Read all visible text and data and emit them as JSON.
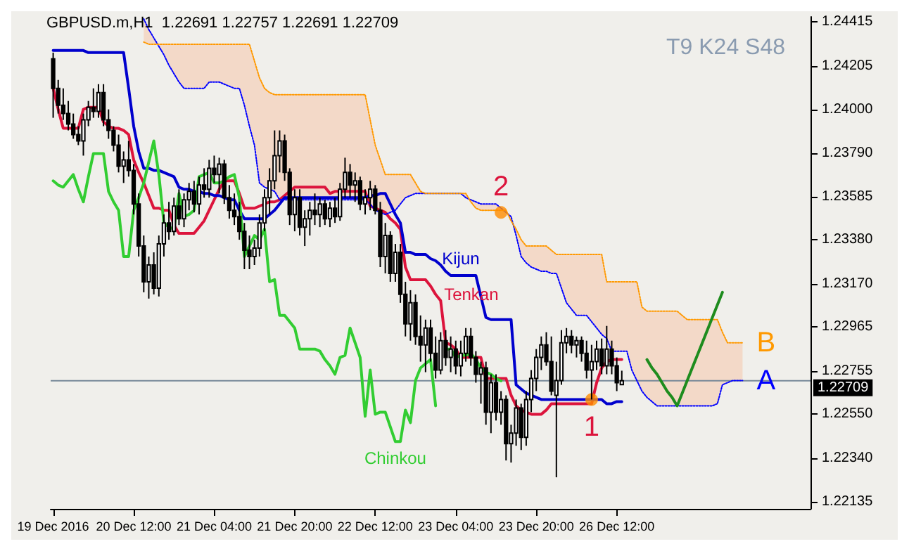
{
  "chart_data": {
    "type": "candlestick",
    "title": "GBPUSD.m,H1  1.22691 1.22757 1.22691 1.22709",
    "annotations": [
      "T9 K24 S48",
      {
        "text": "2",
        "y": 1.2351
      },
      {
        "text": "1",
        "y": 1.2262
      }
    ],
    "categories": [
      "19 Dec 2016",
      null,
      null,
      null,
      null,
      null,
      null,
      null,
      null,
      null,
      null,
      null,
      null,
      null,
      null,
      null,
      "20 Dec 12:00",
      null,
      null,
      null,
      null,
      null,
      null,
      null,
      null,
      null,
      null,
      null,
      null,
      null,
      null,
      null,
      "21 Dec 04:00",
      null,
      null,
      null,
      null,
      null,
      null,
      null,
      null,
      null,
      null,
      null,
      null,
      null,
      null,
      null,
      "21 Dec 20:00",
      null,
      null,
      null,
      null,
      null,
      null,
      null,
      null,
      null,
      null,
      null,
      null,
      null,
      null,
      null,
      "22 Dec 12:00",
      null,
      null,
      null,
      null,
      null,
      null,
      null,
      null,
      null,
      null,
      null,
      null,
      null,
      null,
      null,
      "23 Dec 04:00",
      null,
      null,
      null,
      null,
      null,
      null,
      null,
      null,
      null,
      null,
      null,
      null,
      null,
      null,
      null,
      "23 Dec 20:00",
      null,
      null,
      null,
      null,
      null,
      null,
      null,
      null,
      null,
      null,
      null,
      null,
      null,
      null,
      null,
      "26 Dec 12:00",
      null,
      null,
      null,
      null,
      null,
      null,
      null,
      null,
      null,
      null,
      null,
      null,
      null,
      null,
      null,
      null,
      null,
      null,
      null,
      null,
      null,
      null,
      null,
      null,
      null,
      null,
      null,
      null,
      null,
      null,
      null,
      null,
      null,
      null,
      null,
      null,
      null,
      null
    ],
    "ohlc": [
      [
        1.2424,
        1.2427,
        1.2396,
        1.241
      ],
      [
        1.241,
        1.2414,
        1.2398,
        1.2402
      ],
      [
        1.2402,
        1.241,
        1.2395,
        1.2398
      ],
      [
        1.2398,
        1.2404,
        1.239,
        1.2393
      ],
      [
        1.2393,
        1.2398,
        1.2386,
        1.2388
      ],
      [
        1.2388,
        1.2392,
        1.2383,
        1.2385
      ],
      [
        1.2385,
        1.2398,
        1.2378,
        1.2395
      ],
      [
        1.2395,
        1.2404,
        1.2392,
        1.2401
      ],
      [
        1.2401,
        1.241,
        1.2396,
        1.2399
      ],
      [
        1.2399,
        1.2412,
        1.2396,
        1.2408
      ],
      [
        1.2408,
        1.2412,
        1.2392,
        1.2395
      ],
      [
        1.2395,
        1.24,
        1.2386,
        1.239
      ],
      [
        1.239,
        1.2392,
        1.238,
        1.2383
      ],
      [
        1.2383,
        1.2388,
        1.237,
        1.2373
      ],
      [
        1.2373,
        1.238,
        1.2365,
        1.2376
      ],
      [
        1.2376,
        1.2385,
        1.2368,
        1.2371
      ],
      [
        1.2371,
        1.2374,
        1.235,
        1.2355
      ],
      [
        1.2355,
        1.236,
        1.233,
        1.2335
      ],
      [
        1.2335,
        1.234,
        1.2313,
        1.2318
      ],
      [
        1.2318,
        1.233,
        1.231,
        1.2326
      ],
      [
        1.2326,
        1.2332,
        1.2312,
        1.2315
      ],
      [
        1.2315,
        1.234,
        1.2311,
        1.2336
      ],
      [
        1.2336,
        1.235,
        1.233,
        1.2346
      ],
      [
        1.2346,
        1.2356,
        1.2338,
        1.2342
      ],
      [
        1.2342,
        1.2358,
        1.234,
        1.2354
      ],
      [
        1.2354,
        1.2362,
        1.2345,
        1.2348
      ],
      [
        1.2348,
        1.236,
        1.2344,
        1.2357
      ],
      [
        1.2357,
        1.2365,
        1.2352,
        1.2361
      ],
      [
        1.2361,
        1.2366,
        1.2351,
        1.2355
      ],
      [
        1.2355,
        1.2368,
        1.235,
        1.2364
      ],
      [
        1.2364,
        1.2372,
        1.2358,
        1.2362
      ],
      [
        1.2362,
        1.2376,
        1.2358,
        1.2372
      ],
      [
        1.2372,
        1.2378,
        1.2365,
        1.2369
      ],
      [
        1.2369,
        1.2377,
        1.236,
        1.2374
      ],
      [
        1.2374,
        1.2376,
        1.2355,
        1.2358
      ],
      [
        1.2358,
        1.2364,
        1.2348,
        1.2352
      ],
      [
        1.2352,
        1.236,
        1.2345,
        1.2349
      ],
      [
        1.2349,
        1.2356,
        1.2338,
        1.2342
      ],
      [
        1.2342,
        1.2346,
        1.2324,
        1.2333
      ],
      [
        1.2333,
        1.234,
        1.2324,
        1.233
      ],
      [
        1.233,
        1.2338,
        1.2326,
        1.2334
      ],
      [
        1.2334,
        1.235,
        1.233,
        1.2346
      ],
      [
        1.2346,
        1.2362,
        1.2342,
        1.2358
      ],
      [
        1.2358,
        1.2372,
        1.235,
        1.2366
      ],
      [
        1.2366,
        1.239,
        1.2362,
        1.2378
      ],
      [
        1.2378,
        1.239,
        1.237,
        1.2385
      ],
      [
        1.2385,
        1.2388,
        1.2366,
        1.237
      ],
      [
        1.237,
        1.2372,
        1.2345,
        1.235
      ],
      [
        1.235,
        1.2362,
        1.2342,
        1.2358
      ],
      [
        1.2358,
        1.2362,
        1.234,
        1.2344
      ],
      [
        1.2344,
        1.2352,
        1.2335,
        1.2348
      ],
      [
        1.2348,
        1.2356,
        1.234,
        1.2352
      ],
      [
        1.2352,
        1.236,
        1.2345,
        1.235
      ],
      [
        1.235,
        1.2358,
        1.2344,
        1.2355
      ],
      [
        1.2355,
        1.2357,
        1.2345,
        1.2348
      ],
      [
        1.2348,
        1.2356,
        1.2344,
        1.2353
      ],
      [
        1.2353,
        1.2358,
        1.2346,
        1.2349
      ],
      [
        1.2349,
        1.2365,
        1.2347,
        1.2362
      ],
      [
        1.2362,
        1.2377,
        1.2358,
        1.237
      ],
      [
        1.237,
        1.2374,
        1.2358,
        1.2364
      ],
      [
        1.2364,
        1.237,
        1.2356,
        1.2366
      ],
      [
        1.2366,
        1.2368,
        1.2352,
        1.2355
      ],
      [
        1.2355,
        1.2362,
        1.235,
        1.2358
      ],
      [
        1.2358,
        1.2366,
        1.2352,
        1.2362
      ],
      [
        1.2362,
        1.2364,
        1.235,
        1.2352
      ],
      [
        1.2352,
        1.2356,
        1.2325,
        1.233
      ],
      [
        1.233,
        1.2346,
        1.2322,
        1.234
      ],
      [
        1.234,
        1.2342,
        1.2318,
        1.2322
      ],
      [
        1.2322,
        1.2336,
        1.2318,
        1.2332
      ],
      [
        1.2332,
        1.2336,
        1.2308,
        1.2312
      ],
      [
        1.2312,
        1.2318,
        1.2292,
        1.2298
      ],
      [
        1.2298,
        1.2314,
        1.229,
        1.2308
      ],
      [
        1.2308,
        1.2312,
        1.2288,
        1.2292
      ],
      [
        1.2292,
        1.2302,
        1.228,
        1.2288
      ],
      [
        1.2288,
        1.23,
        1.2275,
        1.2296
      ],
      [
        1.2296,
        1.23,
        1.228,
        1.2284
      ],
      [
        1.2284,
        1.2292,
        1.2272,
        1.2276
      ],
      [
        1.2276,
        1.2294,
        1.2274,
        1.229
      ],
      [
        1.229,
        1.2295,
        1.2278,
        1.2282
      ],
      [
        1.2282,
        1.2292,
        1.2275,
        1.2286
      ],
      [
        1.2286,
        1.229,
        1.2274,
        1.2278
      ],
      [
        1.2278,
        1.229,
        1.2273,
        1.2284
      ],
      [
        1.2284,
        1.2296,
        1.228,
        1.2292
      ],
      [
        1.2292,
        1.2296,
        1.2278,
        1.2282
      ],
      [
        1.2282,
        1.2285,
        1.227,
        1.2274
      ],
      [
        1.2274,
        1.228,
        1.226,
        1.2277
      ],
      [
        1.2277,
        1.228,
        1.225,
        1.2256
      ],
      [
        1.2256,
        1.2274,
        1.2246,
        1.227
      ],
      [
        1.227,
        1.2274,
        1.2252,
        1.2256
      ],
      [
        1.2256,
        1.2266,
        1.225,
        1.2262
      ],
      [
        1.2262,
        1.2264,
        1.2233,
        1.2241
      ],
      [
        1.2241,
        1.225,
        1.2232,
        1.2246
      ],
      [
        1.2246,
        1.2262,
        1.224,
        1.2258
      ],
      [
        1.2258,
        1.226,
        1.2238,
        1.2244
      ],
      [
        1.2244,
        1.2266,
        1.224,
        1.2262
      ],
      [
        1.2262,
        1.2276,
        1.2256,
        1.2272
      ],
      [
        1.2272,
        1.2286,
        1.2266,
        1.2282
      ],
      [
        1.2282,
        1.2292,
        1.2276,
        1.2288
      ],
      [
        1.2288,
        1.2294,
        1.2278,
        1.228
      ],
      [
        1.228,
        1.2292,
        1.2264,
        1.2266
      ],
      [
        1.2264,
        1.228,
        1.2225,
        1.2271
      ],
      [
        1.2271,
        1.2295,
        1.2269,
        1.2289
      ],
      [
        1.2289,
        1.2296,
        1.2284,
        1.2292
      ],
      [
        1.2292,
        1.2295,
        1.2284,
        1.2288
      ],
      [
        1.2288,
        1.2292,
        1.2282,
        1.229
      ],
      [
        1.229,
        1.2292,
        1.228,
        1.2284
      ],
      [
        1.2284,
        1.229,
        1.2272,
        1.2276
      ],
      [
        1.2276,
        1.2288,
        1.2262,
        1.228
      ],
      [
        1.228,
        1.229,
        1.2276,
        1.2286
      ],
      [
        1.2286,
        1.2291,
        1.2274,
        1.2278
      ],
      [
        1.2278,
        1.2297,
        1.2274,
        1.2286
      ],
      [
        1.2286,
        1.229,
        1.2274,
        1.2278
      ],
      [
        1.2278,
        1.2282,
        1.2266,
        1.227
      ],
      [
        1.22691,
        1.22757,
        1.22691,
        1.22709
      ],
      null,
      null,
      null,
      null,
      null,
      null,
      null,
      null,
      null,
      null,
      null,
      null,
      null,
      null,
      null,
      null,
      null,
      null,
      null,
      null,
      null,
      null,
      null,
      null,
      null,
      null,
      null,
      null,
      null,
      null,
      null,
      null,
      null,
      null,
      null,
      null,
      null
    ],
    "series": [
      {
        "type": "line",
        "name": "Tenkan",
        "color": "#dc143c",
        "values": [
          1.241,
          1.24,
          1.2391,
          1.2391,
          1.2391,
          1.2391,
          1.24,
          1.2401,
          1.2401,
          1.2401,
          1.2394,
          1.2392,
          1.2391,
          1.2391,
          1.239,
          1.2388,
          1.2376,
          1.237,
          1.2365,
          1.2359,
          1.2353,
          1.2353,
          1.2352,
          1.2352,
          1.2345,
          1.2341,
          1.2341,
          1.2341,
          1.2341,
          1.2344,
          1.2347,
          1.2352,
          1.2357,
          1.2362,
          1.2366,
          1.2366,
          1.2366,
          1.236,
          1.2353,
          1.2353,
          1.2353,
          1.2354,
          1.2355,
          1.2356,
          1.2356,
          1.2357,
          1.2359,
          1.2361,
          1.2363,
          1.2363,
          1.2363,
          1.2363,
          1.2363,
          1.2363,
          1.2363,
          1.236,
          1.2361,
          1.2361,
          1.2361,
          1.2361,
          1.2361,
          1.2361,
          1.2361,
          1.2354,
          1.2353,
          1.2352,
          1.2351,
          1.2348,
          1.2346,
          1.2343,
          1.2325,
          1.2319,
          1.2319,
          1.2319,
          1.2319,
          1.2316,
          1.2312,
          1.2309,
          1.2289,
          1.2288,
          1.2286,
          1.2282,
          1.2282,
          1.2282,
          1.2282,
          1.2282,
          1.2272,
          1.2272,
          1.2272,
          1.2272,
          1.2272,
          1.2264,
          1.2259,
          1.2257,
          1.2256,
          1.2255,
          1.2255,
          1.2255,
          1.2257,
          1.226,
          1.226,
          1.226,
          1.226,
          1.226,
          1.226,
          1.226,
          1.226,
          1.226,
          1.227,
          1.2277,
          1.228,
          1.2281,
          1.2281,
          1.2281,
          null,
          null,
          null,
          null,
          null,
          null,
          null,
          null,
          null,
          null,
          null,
          null,
          null,
          null,
          null,
          null,
          null,
          null,
          null,
          null,
          null,
          null,
          null,
          null,
          null,
          null,
          null,
          null,
          null,
          null,
          null,
          null,
          null,
          null,
          null,
          null,
          null
        ]
      },
      {
        "type": "line",
        "name": "Kijun",
        "color": "#0000cd",
        "values": [
          1.2428,
          1.2428,
          1.2428,
          1.2428,
          1.2428,
          1.2428,
          1.2428,
          1.2427,
          1.2427,
          1.2427,
          1.2427,
          1.2427,
          1.2427,
          1.2427,
          1.2427,
          1.241,
          1.2392,
          1.238,
          1.2372,
          1.2372,
          1.2371,
          1.2371,
          1.237,
          1.2369,
          1.2368,
          1.2363,
          1.2362,
          1.2362,
          1.2361,
          1.2361,
          1.236,
          1.236,
          1.2359,
          1.2359,
          1.2358,
          1.2357,
          1.2357,
          1.2352,
          1.2348,
          1.2348,
          1.2348,
          1.2348,
          1.2348,
          1.235,
          1.2352,
          1.2355,
          1.2358,
          1.2358,
          1.2358,
          1.2358,
          1.2358,
          1.2358,
          1.2358,
          1.2358,
          1.2358,
          1.2358,
          1.2358,
          1.2358,
          1.2358,
          1.2358,
          1.2358,
          1.2358,
          1.2358,
          1.2359,
          1.2359,
          1.236,
          1.236,
          1.2355,
          1.235,
          1.2346,
          1.2332,
          1.2332,
          1.2331,
          1.2331,
          1.2331,
          1.2329,
          1.2328,
          1.2326,
          1.2323,
          1.2321,
          1.2321,
          1.2321,
          1.2321,
          1.2321,
          1.2321,
          1.2311,
          1.2301,
          1.23,
          1.23,
          1.23,
          1.23,
          1.23,
          1.2269,
          1.2267,
          1.2265,
          1.2264,
          1.2263,
          1.2262,
          1.2262,
          1.2262,
          1.2262,
          1.2262,
          1.2262,
          1.2262,
          1.2262,
          1.2262,
          1.2262,
          1.2262,
          1.2262,
          1.2262,
          1.226,
          1.226,
          1.2261,
          1.2261,
          null,
          null,
          null,
          null,
          null,
          null,
          null,
          null,
          null,
          null,
          null,
          null,
          null,
          null,
          null,
          null,
          null,
          null,
          null,
          null,
          null,
          null,
          null,
          null,
          null,
          null,
          null,
          null,
          null,
          null,
          null,
          null,
          null,
          null,
          null,
          null,
          null
        ]
      },
      {
        "type": "line",
        "name": "Chinkou",
        "color": "#32cd32",
        "values": [
          1.2366,
          1.2364,
          1.2363,
          1.2366,
          1.2369,
          1.2362,
          1.2356,
          1.2368,
          1.2379,
          1.2379,
          1.2379,
          1.2361,
          1.2356,
          1.2352,
          1.233,
          1.233,
          1.2352,
          1.2358,
          1.2365,
          1.2375,
          1.2385,
          1.2369,
          1.2346,
          1.2344,
          1.2343,
          1.236,
          1.2349,
          1.235,
          1.2352,
          1.2368,
          1.2369,
          1.237,
          1.2365,
          1.2365,
          1.2366,
          1.2368,
          1.2369,
          1.2358,
          1.233,
          1.2335,
          1.234,
          1.2338,
          1.2343,
          1.2318,
          1.2319,
          1.2302,
          1.2302,
          1.2299,
          1.2296,
          1.2286,
          1.2286,
          1.2286,
          1.2286,
          1.2285,
          1.2281,
          1.2278,
          1.2274,
          1.2282,
          1.2283,
          1.2296,
          1.2289,
          1.2282,
          1.2254,
          1.2276,
          1.2255,
          1.2256,
          1.2256,
          1.2249,
          1.2242,
          1.2242,
          1.2257,
          1.2251,
          1.2271,
          1.2277,
          1.2279,
          1.2281,
          1.2259,
          null,
          1.2286,
          1.2286,
          1.2282,
          1.2283,
          1.2283,
          1.2284,
          1.2281,
          1.2277,
          1.2275,
          1.2274,
          1.2272,
          1.22709,
          null,
          null,
          null,
          null,
          null,
          null,
          null,
          null,
          null,
          null,
          null,
          null,
          null,
          null,
          null,
          null,
          null,
          null,
          null,
          null,
          null,
          null,
          null,
          null,
          null,
          null,
          null,
          null,
          null,
          null,
          null,
          null,
          null,
          null,
          null,
          null,
          null,
          null,
          null,
          null,
          null,
          null,
          null,
          null,
          null,
          null,
          null,
          null,
          null,
          null,
          null,
          null,
          null,
          null,
          null,
          null,
          null,
          null,
          null,
          null,
          null
        ]
      },
      {
        "type": "line",
        "name": "A",
        "color": "#0000ff",
        "line_style": "dotted",
        "values": [
          null,
          null,
          null,
          null,
          null,
          null,
          null,
          null,
          null,
          null,
          null,
          null,
          null,
          null,
          null,
          null,
          null,
          null,
          1.2443,
          1.2438,
          1.2434,
          1.243,
          1.2426,
          1.2421,
          1.2417,
          1.2413,
          1.241,
          1.241,
          1.241,
          1.241,
          1.241,
          1.2413,
          1.2413,
          1.2413,
          1.2412,
          1.2411,
          1.241,
          1.241,
          1.2402,
          1.2392,
          1.2383,
          1.2365,
          1.2363,
          1.2362,
          1.2361,
          1.2357,
          1.2357,
          1.2357,
          1.2357,
          1.2357,
          1.2357,
          1.2357,
          1.2357,
          1.2357,
          1.2357,
          1.2357,
          1.2357,
          1.2357,
          1.2357,
          1.2357,
          1.2357,
          1.2357,
          1.2357,
          1.2355,
          1.2352,
          1.2351,
          1.235,
          1.2351,
          1.2352,
          1.2355,
          1.2358,
          1.2359,
          1.236,
          1.236,
          1.236,
          1.236,
          1.236,
          1.236,
          1.236,
          1.236,
          1.236,
          1.236,
          1.2358,
          1.2357,
          1.2356,
          1.2355,
          1.2355,
          1.2355,
          1.2355,
          1.2353,
          1.2351,
          1.2349,
          1.234,
          1.233,
          1.2327,
          1.2325,
          1.2324,
          1.2323,
          1.2323,
          1.2322,
          1.2322,
          1.2315,
          1.2308,
          1.2305,
          1.2302,
          1.2302,
          1.2302,
          1.2299,
          1.2296,
          1.2293,
          1.2291,
          1.2285,
          1.2285,
          1.2285,
          1.2285,
          1.2276,
          1.2271,
          1.2266,
          1.2263,
          1.2261,
          1.2259,
          1.2259,
          1.2259,
          1.2259,
          1.2259,
          1.2259,
          1.2259,
          1.2259,
          1.2259,
          1.2259,
          1.2259,
          1.2259,
          1.226,
          1.2269,
          1.227,
          1.2271,
          1.2271,
          1.2271,
          null,
          null,
          null,
          null,
          null,
          null,
          null,
          null,
          null,
          null,
          null,
          null,
          null
        ]
      },
      {
        "type": "line",
        "name": "B",
        "color": "#ff9900",
        "line_style": "dotted",
        "values": [
          null,
          null,
          null,
          null,
          null,
          null,
          null,
          null,
          null,
          null,
          null,
          null,
          null,
          null,
          null,
          null,
          null,
          null,
          1.2432,
          1.2431,
          1.2431,
          1.2431,
          1.2431,
          1.2431,
          1.2431,
          1.2431,
          1.2431,
          1.2431,
          1.2431,
          1.2431,
          1.2431,
          1.2431,
          1.2431,
          1.2431,
          1.2431,
          1.2431,
          1.2431,
          1.2431,
          1.2431,
          1.2431,
          1.2423,
          1.2415,
          1.241,
          1.2408,
          1.2407,
          1.2407,
          1.2407,
          1.2407,
          1.2407,
          1.2407,
          1.2407,
          1.2407,
          1.2407,
          1.2407,
          1.2407,
          1.2407,
          1.2407,
          1.2407,
          1.2407,
          1.2407,
          1.2407,
          1.2407,
          1.2407,
          1.2395,
          1.2383,
          1.2376,
          1.2369,
          1.2369,
          1.2369,
          1.2369,
          1.2369,
          1.2369,
          1.2365,
          1.2361,
          1.236,
          1.236,
          1.236,
          1.236,
          1.236,
          1.236,
          1.236,
          1.236,
          1.236,
          1.2356,
          1.2353,
          1.2352,
          1.2352,
          1.2352,
          1.2352,
          1.2352,
          1.2352,
          1.2347,
          1.2343,
          1.2338,
          1.2335,
          1.2335,
          1.2335,
          1.2335,
          1.2335,
          1.2333,
          1.2331,
          1.2331,
          1.2331,
          1.2331,
          1.2331,
          1.2331,
          1.2331,
          1.2331,
          1.2331,
          1.2331,
          1.2318,
          1.2318,
          1.2318,
          1.2318,
          1.2318,
          1.2318,
          1.2318,
          1.2306,
          1.2304,
          1.2304,
          1.2304,
          1.2304,
          1.2304,
          1.2304,
          1.2304,
          1.2302,
          1.23,
          1.23,
          1.23,
          1.23,
          1.23,
          1.23,
          1.23,
          1.2294,
          1.2289,
          1.2289,
          1.2289,
          1.2289,
          null,
          null,
          null,
          null,
          null,
          null,
          null,
          null,
          null,
          null,
          null,
          null,
          null
        ]
      },
      {
        "type": "line",
        "color": "#1e8c1e",
        "values": [
          null,
          null,
          null,
          null,
          null,
          null,
          null,
          null,
          null,
          null,
          null,
          null,
          null,
          null,
          null,
          null,
          null,
          null,
          null,
          null,
          null,
          null,
          null,
          null,
          null,
          null,
          null,
          null,
          null,
          null,
          null,
          null,
          null,
          null,
          null,
          null,
          null,
          null,
          null,
          null,
          null,
          null,
          null,
          null,
          null,
          null,
          null,
          null,
          null,
          null,
          null,
          null,
          null,
          null,
          null,
          null,
          null,
          null,
          null,
          null,
          null,
          null,
          null,
          null,
          null,
          null,
          null,
          null,
          null,
          null,
          null,
          null,
          null,
          null,
          null,
          null,
          null,
          null,
          null,
          null,
          null,
          null,
          null,
          null,
          null,
          null,
          null,
          null,
          null,
          null,
          null,
          null,
          null,
          null,
          null,
          null,
          null,
          null,
          null,
          null,
          null,
          null,
          null,
          null,
          null,
          null,
          null,
          null,
          null,
          null,
          null,
          null,
          null,
          null,
          null,
          null,
          null,
          null,
          1.2281,
          1.2277,
          1.2274,
          1.227,
          1.2266,
          1.2263,
          1.2259,
          1.2265,
          1.2271,
          1.2277,
          1.2283,
          1.2289,
          1.2295,
          1.2301,
          1.2307,
          1.2313,
          null,
          null,
          null,
          null,
          null,
          null,
          null,
          null,
          null,
          null,
          null,
          null,
          null,
          null,
          null,
          null,
          null
        ]
      },
      {
        "type": "scatter",
        "color": "#ff8c00",
        "marker": "circle",
        "values": [
          null,
          null,
          null,
          null,
          null,
          null,
          null,
          null,
          null,
          null,
          null,
          null,
          null,
          null,
          null,
          null,
          null,
          null,
          null,
          null,
          null,
          null,
          null,
          null,
          null,
          null,
          null,
          null,
          null,
          null,
          null,
          null,
          null,
          null,
          null,
          null,
          null,
          null,
          null,
          null,
          null,
          null,
          null,
          null,
          null,
          null,
          null,
          null,
          null,
          null,
          null,
          null,
          null,
          null,
          null,
          null,
          null,
          null,
          null,
          null,
          null,
          null,
          null,
          null,
          null,
          null,
          null,
          null,
          null,
          null,
          null,
          null,
          null,
          null,
          null,
          null,
          null,
          null,
          null,
          null,
          null,
          null,
          null,
          null,
          null,
          null,
          null,
          null,
          null,
          1.2351,
          null,
          null,
          null,
          null,
          null,
          null,
          null,
          null,
          null,
          null,
          null,
          null,
          null,
          null,
          null,
          null,
          null,
          1.2262,
          null,
          null,
          null,
          null,
          null,
          null,
          null,
          null,
          null,
          null,
          null,
          null,
          null,
          null,
          null,
          null,
          null,
          null,
          null,
          null,
          null,
          null,
          null,
          null,
          null,
          null,
          null,
          null,
          null,
          null,
          null,
          null,
          null,
          null,
          null,
          null,
          null,
          null,
          null,
          null,
          null,
          null,
          null
        ]
      }
    ],
    "ylim": [
      1.221,
      1.2444
    ],
    "yticks": [
      {
        "value": 1.24415,
        "label": "1.24415"
      },
      {
        "value": 1.24205,
        "label": "1.24205"
      },
      {
        "value": 1.24,
        "label": "1.24000"
      },
      {
        "value": 1.2379,
        "label": "1.23790"
      },
      {
        "value": 1.23585,
        "label": "1.23585"
      },
      {
        "value": 1.2338,
        "label": "1.23380"
      },
      {
        "value": 1.2317,
        "label": "1.23170"
      },
      {
        "value": 1.22965,
        "label": "1.22965"
      },
      {
        "value": 1.22755,
        "label": "1.22755"
      },
      {
        "value": 1.2255,
        "label": "1.22550"
      },
      {
        "value": 1.2234,
        "label": "1.22340"
      },
      {
        "value": 1.22135,
        "label": "1.22135"
      }
    ],
    "ref_lines": [
      {
        "axis": "y",
        "value": 1.22709,
        "label": "1.22709",
        "color": "#778899"
      }
    ]
  }
}
